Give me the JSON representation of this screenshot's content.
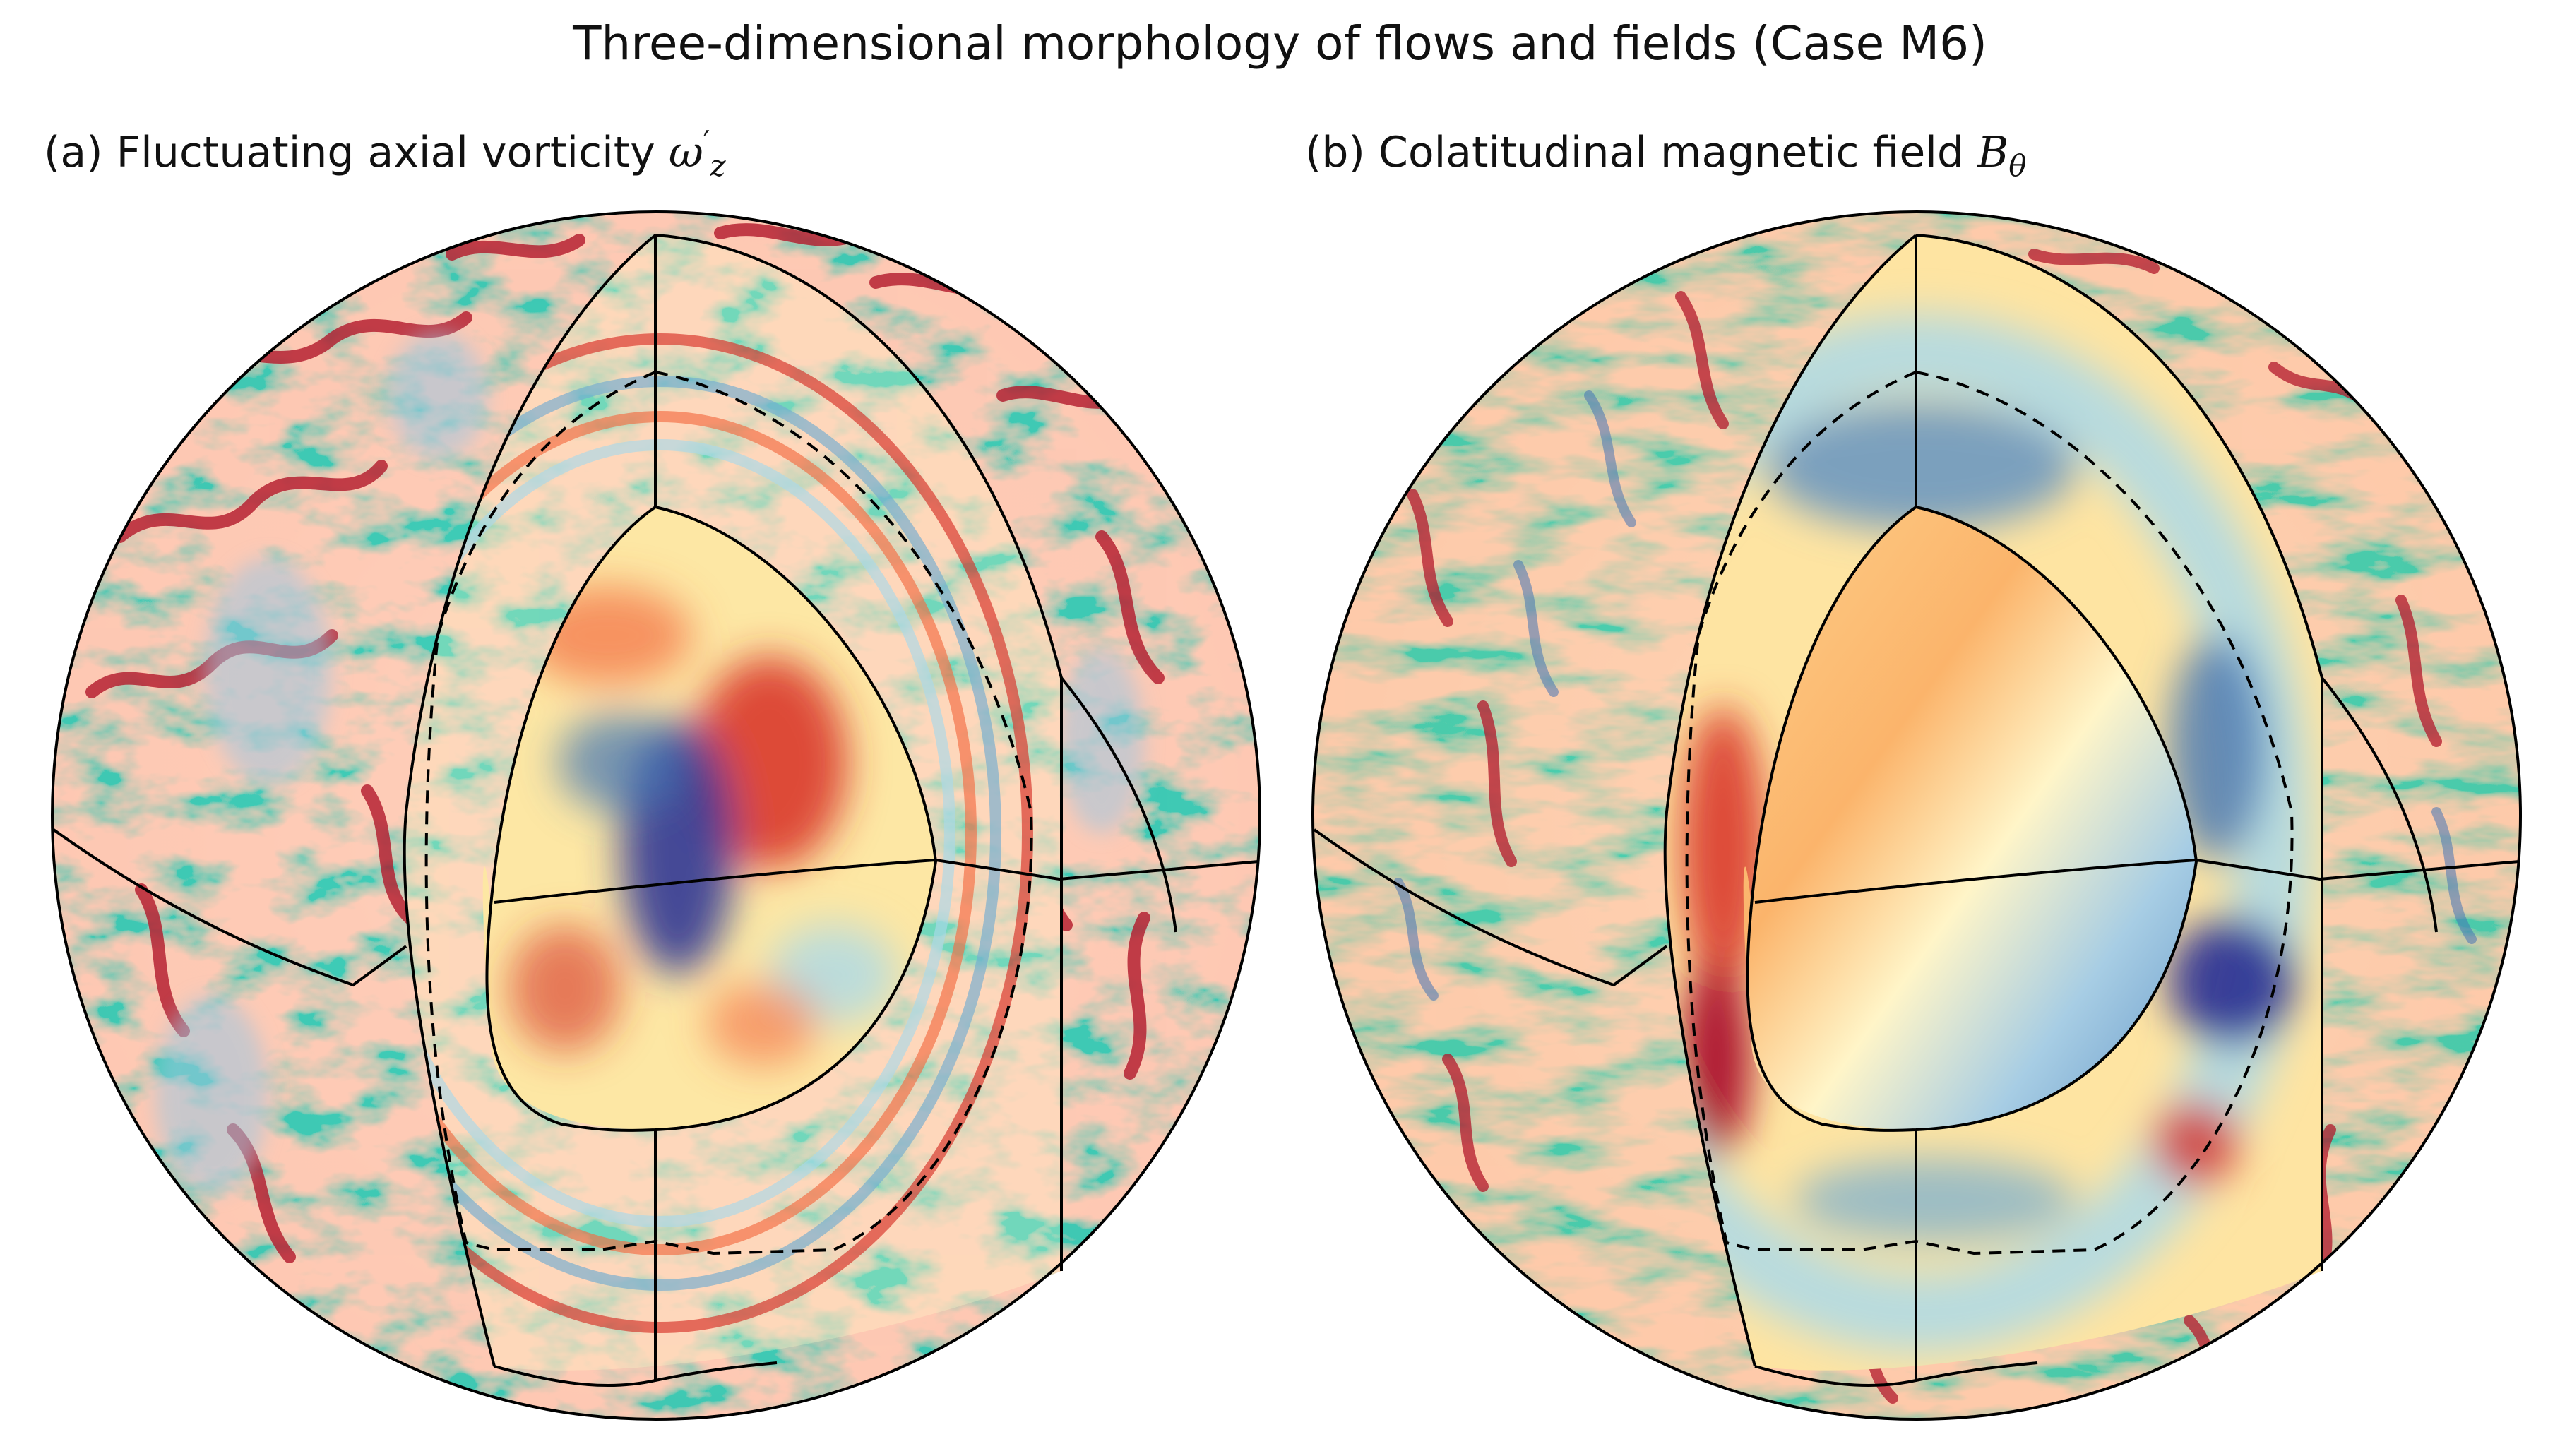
{
  "figure_title": "Three-dimensional morphology of flows and fields (Case M6)",
  "panels": [
    {
      "label": "(a) Fluctuating axial vorticity ",
      "symbol": "ω",
      "sup": "′",
      "sub": "z",
      "colormap": "diverging red-yellow-blue",
      "colors": {
        "high": "#a50026",
        "mid": "#ffffbf",
        "low": "#313695"
      }
    },
    {
      "label": "(b) Colatitudinal magnetic field ",
      "symbol": "B",
      "sup": "",
      "sub": "θ",
      "colormap": "diverging red-yellow-blue",
      "colors": {
        "high": "#a50026",
        "mid": "#ffffbf",
        "low": "#313695"
      }
    }
  ]
}
